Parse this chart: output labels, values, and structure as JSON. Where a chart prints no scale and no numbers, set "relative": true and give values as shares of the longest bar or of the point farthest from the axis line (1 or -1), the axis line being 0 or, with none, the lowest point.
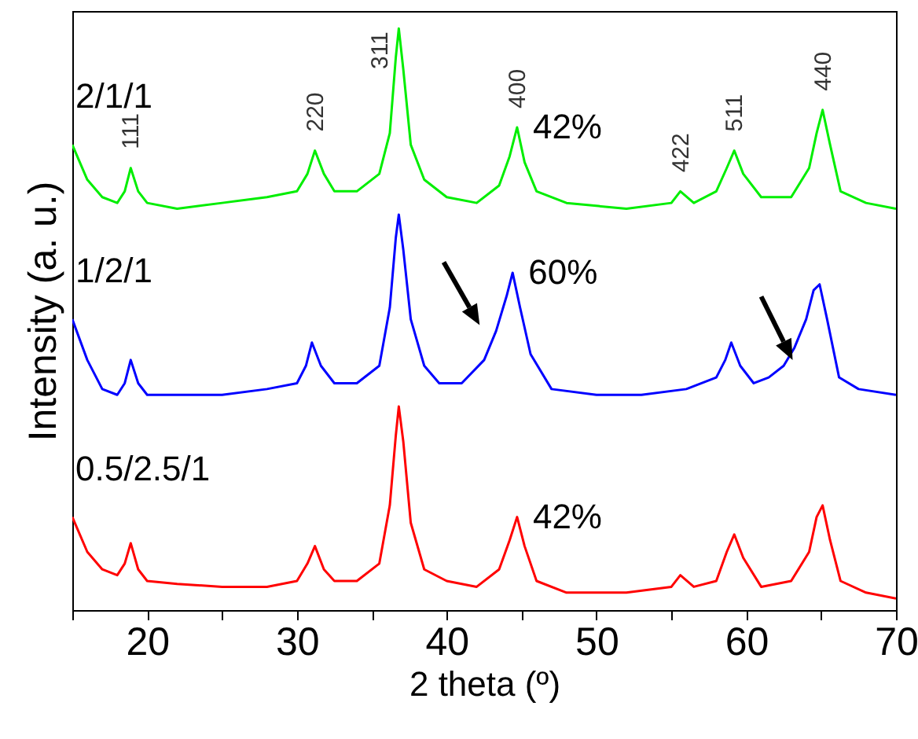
{
  "chart_data": {
    "type": "line",
    "relative": true,
    "xlabel": "2 theta (º)",
    "ylabel": "Intensity (a. u.)",
    "xlim": [
      15,
      70
    ],
    "xticks": [
      {
        "value": 15,
        "label": null
      },
      20,
      {
        "value": 25,
        "label": null
      },
      30,
      {
        "value": 35,
        "label": null
      },
      40,
      {
        "value": 45,
        "label": null
      },
      50,
      {
        "value": 55,
        "label": null
      },
      60,
      {
        "value": 65,
        "label": null
      },
      70
    ],
    "grid": false,
    "marker": "none",
    "line_style": "solid",
    "x": [
      15,
      16,
      17,
      18,
      18.5,
      18.9,
      19.4,
      20,
      22,
      25,
      28,
      30,
      30.7,
      31.2,
      31.8,
      32.5,
      34,
      35.5,
      36.2,
      36.6,
      36.8,
      37.1,
      37.6,
      38.5,
      40,
      42,
      43.5,
      44.2,
      44.7,
      45.2,
      46,
      48,
      52,
      55,
      55.6,
      56.5,
      58,
      58.7,
      59.2,
      59.8,
      61,
      63,
      64.2,
      64.7,
      65.1,
      65.6,
      66.3,
      68,
      70
    ],
    "series": [
      {
        "name": "2/1/1",
        "color": "#00ee00",
        "values": [
          0.8,
          0.74,
          0.71,
          0.7,
          0.72,
          0.76,
          0.72,
          0.7,
          0.69,
          0.7,
          0.71,
          0.72,
          0.75,
          0.79,
          0.75,
          0.72,
          0.72,
          0.75,
          0.82,
          0.95,
          1.0,
          0.93,
          0.8,
          0.74,
          0.71,
          0.7,
          0.73,
          0.78,
          0.83,
          0.77,
          0.72,
          0.7,
          0.69,
          0.7,
          0.72,
          0.7,
          0.72,
          0.76,
          0.79,
          0.75,
          0.71,
          0.71,
          0.76,
          0.82,
          0.86,
          0.8,
          0.72,
          0.7,
          0.69
        ]
      },
      {
        "name": "1/2/1",
        "color": "#0000ff",
        "x": [
          15,
          16,
          17,
          18,
          18.5,
          18.9,
          19.4,
          20,
          22,
          25,
          28,
          30,
          30.6,
          31.0,
          31.6,
          32.5,
          34,
          35.5,
          36.2,
          36.6,
          36.8,
          37.1,
          37.6,
          38.5,
          39.5,
          41,
          42.5,
          43.3,
          44.0,
          44.4,
          44.9,
          45.6,
          47,
          50,
          53,
          56,
          58,
          58.6,
          59.0,
          59.6,
          60.5,
          61.5,
          62.5,
          63.2,
          64.0,
          64.5,
          64.9,
          65.4,
          66.2,
          67.5,
          70
        ],
        "values": [
          0.5,
          0.43,
          0.38,
          0.37,
          0.39,
          0.43,
          0.39,
          0.37,
          0.37,
          0.37,
          0.38,
          0.39,
          0.42,
          0.46,
          0.42,
          0.39,
          0.39,
          0.42,
          0.52,
          0.64,
          0.68,
          0.62,
          0.5,
          0.42,
          0.39,
          0.39,
          0.43,
          0.48,
          0.54,
          0.58,
          0.52,
          0.44,
          0.38,
          0.37,
          0.37,
          0.38,
          0.4,
          0.43,
          0.46,
          0.42,
          0.39,
          0.4,
          0.42,
          0.45,
          0.5,
          0.55,
          0.56,
          0.5,
          0.4,
          0.38,
          0.37
        ]
      },
      {
        "name": "0.5/2.5/1",
        "color": "#ff0000",
        "values": [
          0.16,
          0.1,
          0.07,
          0.06,
          0.08,
          0.115,
          0.07,
          0.05,
          0.045,
          0.04,
          0.04,
          0.05,
          0.08,
          0.11,
          0.07,
          0.05,
          0.05,
          0.08,
          0.18,
          0.3,
          0.35,
          0.29,
          0.15,
          0.07,
          0.05,
          0.04,
          0.07,
          0.12,
          0.16,
          0.11,
          0.05,
          0.03,
          0.03,
          0.04,
          0.06,
          0.04,
          0.05,
          0.1,
          0.13,
          0.09,
          0.04,
          0.05,
          0.1,
          0.16,
          0.18,
          0.12,
          0.05,
          0.03,
          0.02
        ]
      }
    ],
    "annotations": [
      {
        "text": "111",
        "x": 18.9,
        "y": 0.76
      },
      {
        "text": "220",
        "x": 31.2,
        "y": 0.79
      },
      {
        "text": "311",
        "x": 36.8,
        "y": 1.0
      },
      {
        "text": "400",
        "x": 44.7,
        "y": 0.83
      },
      {
        "text": "422",
        "x": 55.6,
        "y": 0.72
      },
      {
        "text": "511",
        "x": 59.2,
        "y": 0.79
      },
      {
        "text": "440",
        "x": 65.1,
        "y": 0.86
      },
      {
        "text": "42%",
        "x": 44.7,
        "y": 0.83
      },
      {
        "text": "60%",
        "x": 44.4,
        "y": 0.58
      },
      {
        "text": "42%",
        "x": 44.7,
        "y": 0.16
      }
    ]
  }
}
